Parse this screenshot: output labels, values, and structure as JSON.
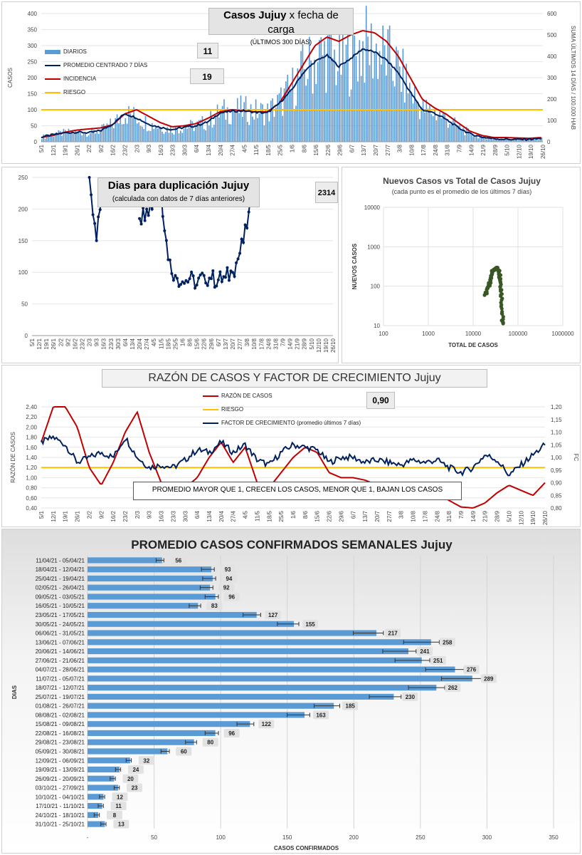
{
  "panel1": {
    "title_bold": "Casos Jujuy",
    "title_rest": " x fecha de carga",
    "subtitle": "(ÚLTIMOS 300 DÍAS)",
    "box_promedio": "11",
    "box_incidencia": "19",
    "legend": [
      "DIARIOS",
      "PROMEDIO CENTRADO 7 DÍAS",
      "INCIDENCIA",
      "RIESGO"
    ]
  },
  "panel2": {
    "title": "Dias para duplicación Jujuy",
    "subtitle": "(calculada con datos de 7 días anteriores)",
    "box": "2314"
  },
  "panel3": {
    "title": "Nuevos Casos vs Total de Casos Jujuy",
    "subtitle": "(cada punto es el promedio de los últimos 7 días)"
  },
  "panel4": {
    "title": "RAZÓN DE CASOS Y FACTOR DE CRECIMIENTO Jujuy",
    "box": "0,90",
    "legend": [
      "RAZÓN DE CASOS",
      "RIESGO",
      "FACTOR DE CRECIMIENTO (promedio últimos 7 días)"
    ],
    "note": "PROMEDIO MAYOR QUE 1, CRECEN LOS CASOS, MENOR QUE 1, BAJAN LOS CASOS"
  },
  "panel5": {
    "title": "PROMEDIO CASOS CONFIRMADOS SEMANALES Jujuy"
  },
  "colors": {
    "bars": "#5b9bd5",
    "navy": "#002060",
    "red": "#c00000",
    "gold": "#ffc000",
    "green": "#385723",
    "weekly": "#5b9bd5"
  },
  "chart_data": [
    {
      "type": "bar",
      "title": "Casos Jujuy x fecha de carga",
      "ylabel": "CASOS",
      "y2label": "SUMA ÚLTIMOS 14 DÍAS / 100.000 HAB",
      "ylim": [
        0,
        400
      ],
      "y2lim": [
        0,
        600
      ],
      "yticks": [
        "0",
        "50",
        "100",
        "150",
        "200",
        "250",
        "300",
        "350",
        "400"
      ],
      "y2ticks": [
        "0",
        "100",
        "200",
        "300",
        "400",
        "500",
        "600"
      ],
      "xticks": [
        "5/1",
        "12/1",
        "19/1",
        "26/1",
        "2/2",
        "9/2",
        "16/2",
        "23/2",
        "2/3",
        "9/3",
        "16/3",
        "23/3",
        "30/3",
        "6/4",
        "13/4",
        "20/4",
        "27/4",
        "4/5",
        "11/5",
        "18/5",
        "25/5",
        "1/6",
        "8/6",
        "15/6",
        "22/6",
        "29/6",
        "6/7",
        "13/7",
        "20/7",
        "27/7",
        "3/8",
        "10/8",
        "17/8",
        "24/8",
        "31/8",
        "7/9",
        "14/9",
        "21/9",
        "28/9",
        "5/10",
        "12/10",
        "19/10",
        "26/10"
      ],
      "series": [
        {
          "name": "PROMEDIO CENTRADO 7 DÍAS (weekly)",
          "values": [
            15,
            22,
            28,
            30,
            28,
            35,
            55,
            88,
            75,
            55,
            45,
            38,
            45,
            50,
            62,
            90,
            95,
            97,
            92,
            90,
            120,
            160,
            215,
            250,
            270,
            235,
            260,
            290,
            280,
            255,
            215,
            155,
            100,
            90,
            70,
            45,
            25,
            15,
            10,
            8,
            7,
            8,
            10
          ]
        },
        {
          "name": "INCIDENCIA (weekly)",
          "values": [
            20,
            30,
            45,
            55,
            60,
            65,
            80,
            130,
            150,
            120,
            90,
            70,
            75,
            85,
            110,
            140,
            150,
            145,
            140,
            140,
            180,
            270,
            360,
            450,
            490,
            470,
            500,
            520,
            510,
            470,
            400,
            300,
            200,
            160,
            130,
            90,
            50,
            30,
            20,
            20,
            18,
            16,
            20
          ]
        },
        {
          "name": "RIESGO",
          "values": [
            100
          ]
        }
      ]
    },
    {
      "type": "line",
      "title": "Dias para duplicación Jujuy",
      "ylim": [
        0,
        250
      ],
      "yticks": [
        "0",
        "50",
        "100",
        "150",
        "200",
        "250"
      ],
      "xticks": [
        "5/1",
        "12/1",
        "19/1",
        "26/1",
        "2/2",
        "9/2",
        "16/2",
        "23/2",
        "2/3",
        "9/3",
        "16/3",
        "23/3",
        "30/3",
        "6/4",
        "13/4",
        "20/4",
        "27/4",
        "4/5",
        "11/5",
        "18/5",
        "25/5",
        "1/6",
        "8/6",
        "15/6",
        "22/6",
        "29/6",
        "6/7",
        "13/7",
        "20/7",
        "27/7",
        "3/8",
        "10/8",
        "17/8",
        "24/8",
        "31/8",
        "7/9",
        "14/9",
        "21/9",
        "28/9",
        "5/10",
        "12/10",
        "19/10",
        "26/10"
      ],
      "values_by_tick": [
        null,
        null,
        null,
        null,
        null,
        null,
        null,
        null,
        250,
        150,
        250,
        null,
        null,
        null,
        null,
        185,
        200,
        210,
        230,
        120,
        95,
        85,
        90,
        80,
        95,
        90,
        88,
        92,
        100,
        130,
        170,
        240,
        null,
        null,
        null,
        null,
        null,
        null,
        null,
        null,
        null,
        null,
        null
      ]
    },
    {
      "type": "scatter",
      "title": "Nuevos Casos vs Total de Casos Jujuy",
      "xlabel": "TOTAL DE CASOS",
      "ylabel": "NUEVOS CASOS",
      "xscale": "log",
      "yscale": "log",
      "xlim": [
        100,
        1000000
      ],
      "ylim": [
        10,
        10000
      ],
      "xticks": [
        "100",
        "1000",
        "10000",
        "100000",
        "1000000"
      ],
      "yticks": [
        "10",
        "100",
        "1000",
        "10000"
      ],
      "points": [
        [
          19000,
          60
        ],
        [
          21000,
          90
        ],
        [
          23000,
          120
        ],
        [
          25000,
          180
        ],
        [
          27000,
          230
        ],
        [
          29000,
          260
        ],
        [
          31000,
          280
        ],
        [
          33000,
          285
        ],
        [
          35000,
          280
        ],
        [
          37000,
          250
        ],
        [
          39000,
          200
        ],
        [
          40500,
          150
        ],
        [
          42000,
          100
        ],
        [
          43000,
          60
        ],
        [
          44000,
          30
        ],
        [
          45000,
          15
        ],
        [
          45500,
          10
        ]
      ]
    },
    {
      "type": "line",
      "title": "RAZÓN DE CASOS Y FACTOR DE CRECIMIENTO Jujuy",
      "ylabel": "RAZÓN DE CASOS",
      "y2label": "FC",
      "ylim": [
        0.4,
        2.4
      ],
      "y2lim": [
        0.8,
        1.2
      ],
      "yticks": [
        "0,40",
        "0,60",
        "0,80",
        "1,00",
        "1,20",
        "1,40",
        "1,60",
        "1,80",
        "2,00",
        "2,20",
        "2,40"
      ],
      "y2ticks": [
        "0,80",
        "0,85",
        "0,90",
        "0,95",
        "1,00",
        "1,05",
        "1,10",
        "1,15",
        "1,20"
      ],
      "xticks": [
        "5/1",
        "12/1",
        "19/1",
        "26/1",
        "2/2",
        "9/2",
        "16/2",
        "23/2",
        "2/3",
        "9/3",
        "16/3",
        "23/3",
        "30/3",
        "6/4",
        "13/4",
        "20/4",
        "27/4",
        "4/5",
        "11/5",
        "18/5",
        "25/5",
        "1/6",
        "8/6",
        "15/6",
        "22/6",
        "29/6",
        "6/7",
        "13/7",
        "20/7",
        "27/7",
        "3/8",
        "10/8",
        "17/8",
        "24/8",
        "31/8",
        "7/9",
        "14/9",
        "21/9",
        "28/9",
        "5/10",
        "12/10",
        "19/10",
        "26/10"
      ],
      "series": [
        {
          "name": "RAZÓN DE CASOS",
          "values": [
            1.7,
            2.4,
            2.4,
            2.0,
            1.2,
            0.85,
            1.3,
            1.9,
            2.3,
            1.5,
            0.9,
            0.7,
            0.8,
            1.0,
            1.4,
            1.7,
            1.3,
            1.6,
            0.9,
            0.8,
            1.1,
            1.4,
            1.6,
            1.5,
            1.1,
            1.0,
            1.0,
            0.95,
            0.85,
            0.7,
            0.6,
            0.65,
            0.65,
            0.7,
            0.55,
            0.42,
            0.4,
            0.5,
            0.7,
            0.85,
            0.75,
            0.65,
            0.9
          ]
        },
        {
          "name": "FACTOR DE CRECIMIENTO (promedio últimos 7 días)",
          "values": [
            1.06,
            1.08,
            1.05,
            0.98,
            1.0,
            1.02,
            1.0,
            1.08,
            1.0,
            0.96,
            0.97,
            0.96,
            0.99,
            1.03,
            1.02,
            1.06,
            1.02,
            1.05,
            0.99,
            0.97,
            1.02,
            1.05,
            1.04,
            1.03,
            0.98,
            1.0,
            1.0,
            0.98,
            0.99,
            0.98,
            0.97,
            0.99,
            0.98,
            0.99,
            0.96,
            0.94,
            0.96,
            1.01,
            0.99,
            0.93,
            0.97,
            1.01,
            1.05
          ]
        },
        {
          "name": "RIESGO",
          "values": [
            1.2
          ]
        }
      ],
      "note": "PROMEDIO MAYOR QUE 1, CRECEN LOS CASOS, MENOR QUE 1, BAJAN LOS CASOS",
      "current_value": "0,90"
    },
    {
      "type": "bar",
      "orientation": "horizontal",
      "title": "PROMEDIO CASOS CONFIRMADOS SEMANALES Jujuy",
      "xlabel": "CASOS CONFIRMADOS",
      "ylabel": "DIAS",
      "xlim": [
        0,
        350
      ],
      "xticks": [
        "-",
        "50",
        "100",
        "150",
        "200",
        "250",
        "300",
        "350"
      ],
      "categories": [
        "11/04/21 - 05/04/21",
        "18/04/21 - 12/04/21",
        "25/04/21 - 19/04/21",
        "02/05/21 - 26/04/21",
        "09/05/21 - 03/05/21",
        "16/05/21 - 10/05/21",
        "23/05/21 - 17/05/21",
        "30/05/21 - 24/05/21",
        "06/06/21 - 31/05/21",
        "13/06/21 - 07/06/21",
        "20/06/21 - 14/06/21",
        "27/06/21 - 21/06/21",
        "04/07/21 - 28/06/21",
        "11/07/21 - 05/07/21",
        "18/07/21 - 12/07/21",
        "25/07/21 - 19/07/21",
        "01/08/21 - 26/07/21",
        "08/08/21 - 02/08/21",
        "15/08/21 - 09/08/21",
        "22/08/21 - 16/08/21",
        "29/08/21 - 23/08/21",
        "05/09/21 - 30/08/21",
        "12/09/21 - 06/09/21",
        "19/09/21 - 13/09/21",
        "26/09/21 - 20/09/21",
        "03/10/21 - 27/09/21",
        "10/10/21 - 04/10/21",
        "17/10/21 - 11/10/21",
        "24/10/21 - 18/10/21",
        "31/10/21 - 25/10/21"
      ],
      "values": [
        56,
        93,
        94,
        92,
        96,
        83,
        127,
        155,
        217,
        258,
        241,
        251,
        276,
        289,
        262,
        230,
        185,
        163,
        122,
        96,
        80,
        60,
        32,
        24,
        20,
        23,
        12,
        11,
        8,
        13
      ],
      "labels": [
        "56",
        "93",
        "94",
        "92",
        "96",
        "83",
        "127",
        "155",
        "217",
        "258",
        "241",
        "251",
        "276",
        "289",
        "262",
        "230",
        "185",
        "163",
        "122",
        "96",
        "80",
        "60",
        "32",
        "24",
        "20",
        "23",
        "12",
        "11",
        "8",
        "13"
      ]
    }
  ]
}
